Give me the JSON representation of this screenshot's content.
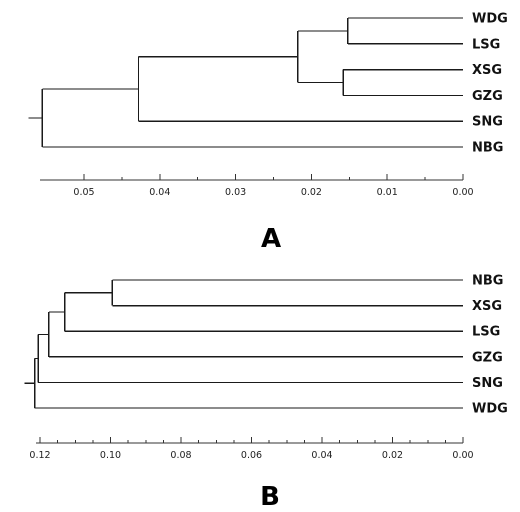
{
  "panels": [
    {
      "label": "A",
      "leaves": [
        "WDG",
        "LSG",
        "XSG",
        "GZG",
        "SNG",
        "NBG"
      ],
      "tree": {
        "h": 0.0555,
        "children": [
          {
            "h": 0.0428,
            "children": [
              {
                "h": 0.0218,
                "children": [
                  {
                    "h": 0.0152,
                    "children": [
                      {
                        "leaf": "WDG"
                      },
                      {
                        "leaf": "LSG"
                      }
                    ]
                  },
                  {
                    "h": 0.0158,
                    "children": [
                      {
                        "leaf": "XSG"
                      },
                      {
                        "leaf": "GZG"
                      }
                    ]
                  }
                ]
              },
              {
                "leaf": "SNG"
              }
            ]
          },
          {
            "leaf": "NBG"
          }
        ]
      },
      "axis": {
        "max": 0.05,
        "min": 0.0,
        "ticks": [
          {
            "value": 0.05,
            "label": "0.05"
          },
          {
            "value": 0.04,
            "label": "0.04"
          },
          {
            "value": 0.03,
            "label": "0.03"
          },
          {
            "value": 0.02,
            "label": "0.02"
          },
          {
            "value": 0.01,
            "label": "0.01"
          },
          {
            "value": 0.0,
            "label": "0.00"
          }
        ],
        "minor_step": 0.005
      }
    },
    {
      "label": "B",
      "leaves": [
        "NBG",
        "XSG",
        "LSG",
        "GZG",
        "SNG",
        "WDG"
      ],
      "tree": {
        "h": 0.1215,
        "children": [
          {
            "h": 0.1205,
            "children": [
              {
                "h": 0.1175,
                "children": [
                  {
                    "h": 0.113,
                    "children": [
                      {
                        "h": 0.0995,
                        "children": [
                          {
                            "leaf": "NBG"
                          },
                          {
                            "leaf": "XSG"
                          }
                        ]
                      },
                      {
                        "leaf": "LSG"
                      }
                    ]
                  },
                  {
                    "leaf": "GZG"
                  }
                ]
              },
              {
                "leaf": "SNG"
              }
            ]
          },
          {
            "leaf": "WDG"
          }
        ]
      },
      "axis": {
        "max": 0.12,
        "min": 0.0,
        "ticks": [
          {
            "value": 0.12,
            "label": "0.12"
          },
          {
            "value": 0.1,
            "label": "0.10"
          },
          {
            "value": 0.08,
            "label": "0.08"
          },
          {
            "value": 0.06,
            "label": "0.06"
          },
          {
            "value": 0.04,
            "label": "0.04"
          },
          {
            "value": 0.02,
            "label": "0.02"
          },
          {
            "value": 0.0,
            "label": "0.00"
          }
        ],
        "minor_step": 0.005
      }
    }
  ]
}
